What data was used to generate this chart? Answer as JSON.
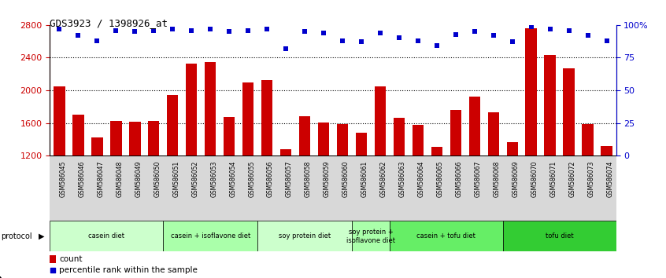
{
  "title": "GDS3923 / 1398926_at",
  "samples": [
    "GSM586045",
    "GSM586046",
    "GSM586047",
    "GSM586048",
    "GSM586049",
    "GSM586050",
    "GSM586051",
    "GSM586052",
    "GSM586053",
    "GSM586054",
    "GSM586055",
    "GSM586056",
    "GSM586057",
    "GSM586058",
    "GSM586059",
    "GSM586060",
    "GSM586061",
    "GSM586062",
    "GSM586063",
    "GSM586064",
    "GSM586065",
    "GSM586066",
    "GSM586067",
    "GSM586068",
    "GSM586069",
    "GSM586070",
    "GSM586071",
    "GSM586072",
    "GSM586073",
    "GSM586074"
  ],
  "counts": [
    2050,
    1700,
    1420,
    1630,
    1620,
    1630,
    1940,
    2330,
    2350,
    1670,
    2100,
    2130,
    1280,
    1680,
    1610,
    1590,
    1480,
    2050,
    1660,
    1580,
    1310,
    1760,
    1920,
    1730,
    1370,
    2760,
    2430,
    2270,
    1590,
    1320
  ],
  "percentile_ranks": [
    97,
    92,
    88,
    96,
    95,
    96,
    97,
    96,
    97,
    95,
    96,
    97,
    82,
    95,
    94,
    88,
    87,
    94,
    90,
    88,
    84,
    93,
    95,
    92,
    87,
    99,
    97,
    96,
    92,
    88
  ],
  "bar_color": "#cc0000",
  "dot_color": "#0000cc",
  "ylim_left": [
    1200,
    2800
  ],
  "ylim_right": [
    0,
    100
  ],
  "yticks_left": [
    1200,
    1600,
    2000,
    2400,
    2800
  ],
  "yticks_right": [
    0,
    25,
    50,
    75,
    100
  ],
  "ylabel_left_color": "#cc0000",
  "ylabel_right_color": "#0000cc",
  "grid_lines": [
    1600,
    2000,
    2400
  ],
  "protocols": [
    {
      "label": "casein diet",
      "start": 0,
      "end": 6,
      "color": "#ccffcc"
    },
    {
      "label": "casein + isoflavone diet",
      "start": 6,
      "end": 11,
      "color": "#aaffaa"
    },
    {
      "label": "soy protein diet",
      "start": 11,
      "end": 16,
      "color": "#ccffcc"
    },
    {
      "label": "soy protein +\nisoflavone diet",
      "start": 16,
      "end": 18,
      "color": "#aaffaa"
    },
    {
      "label": "casein + tofu diet",
      "start": 18,
      "end": 24,
      "color": "#66ee66"
    },
    {
      "label": "tofu diet",
      "start": 24,
      "end": 30,
      "color": "#33cc33"
    }
  ],
  "tick_bg_color": "#d8d8d8",
  "legend_count_color": "#cc0000",
  "legend_percentile_color": "#0000cc"
}
